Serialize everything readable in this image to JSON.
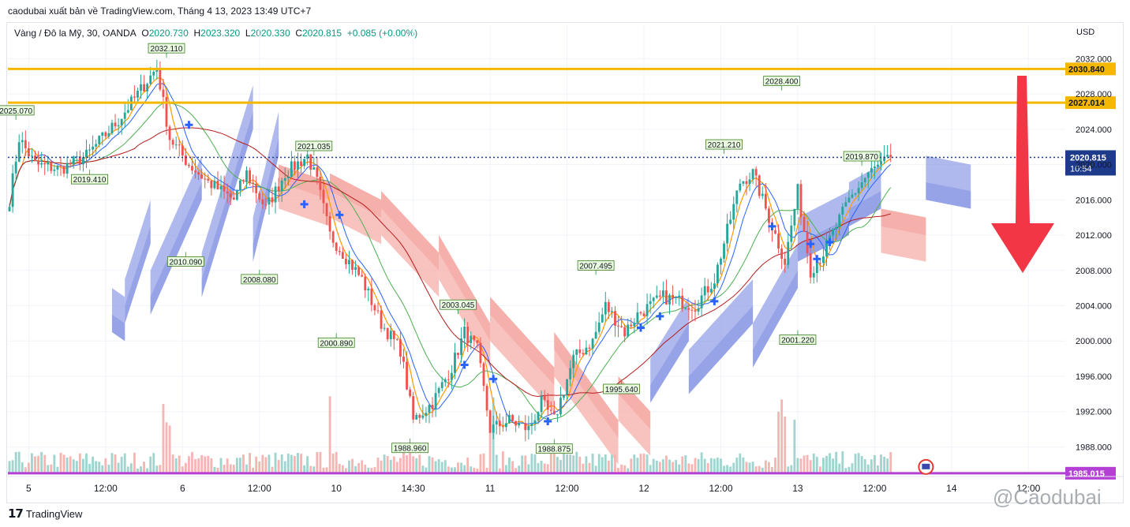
{
  "header": {
    "publish_line": "caodubai xuất bản về TradingView.com, Tháng 4 13, 2023 13:49 UTC+7",
    "symbol": "Vàng / Đô la Mỹ, 30, OANDA",
    "o_label": "O",
    "o_value": "2020.730",
    "h_label": "H",
    "h_value": "2023.320",
    "l_label": "L",
    "l_value": "2020.330",
    "c_label": "C",
    "c_value": "2020.815",
    "change": "+0.085 (+0.00%)"
  },
  "footer": {
    "logo_text": "TradingView",
    "watermark": "@Caodubai"
  },
  "colors": {
    "up": "#26a69a",
    "down": "#ef5350",
    "resistance": "#f5b800",
    "support": "#b43fd4",
    "price_line": "#1e3a8a",
    "cloud_bull": "#8e9be6",
    "cloud_bear": "#f5a9a4",
    "arrow": "#f23645",
    "signal": "#2962ff"
  },
  "chart_data": {
    "type": "candlestick",
    "currency_label": "USD",
    "ylim": [
      1985,
      2034
    ],
    "y_ticks": [
      1988,
      1992,
      1996,
      2000,
      2004,
      2008,
      2012,
      2016,
      2020,
      2024,
      2028,
      2032
    ],
    "y_tick_labels": [
      "1988.000",
      "1992.000",
      "1996.000",
      "2000.000",
      "2004.000",
      "2008.000",
      "2012.000",
      "2016.000",
      "2020.000",
      "2024.000",
      "2028.000",
      "2032.000"
    ],
    "x_ticks": [
      {
        "label": "5",
        "bar": 6
      },
      {
        "label": "12:00",
        "bar": 30
      },
      {
        "label": "6",
        "bar": 54
      },
      {
        "label": "12:00",
        "bar": 78
      },
      {
        "label": "10",
        "bar": 102
      },
      {
        "label": "14:30",
        "bar": 126
      },
      {
        "label": "11",
        "bar": 150
      },
      {
        "label": "12:00",
        "bar": 174
      },
      {
        "label": "12",
        "bar": 198
      },
      {
        "label": "12:00",
        "bar": 222
      },
      {
        "label": "13",
        "bar": 246
      },
      {
        "label": "12:00",
        "bar": 270
      },
      {
        "label": "14",
        "bar": 294
      },
      {
        "label": "12:00",
        "bar": 318
      }
    ],
    "last_bar": 275,
    "total_bars": 330,
    "keypoints": [
      [
        0,
        2016
      ],
      [
        3,
        2023
      ],
      [
        8,
        2020
      ],
      [
        16,
        2019.5
      ],
      [
        24,
        2021
      ],
      [
        34,
        2025
      ],
      [
        46,
        2031
      ],
      [
        50,
        2023
      ],
      [
        56,
        2020
      ],
      [
        62,
        2018
      ],
      [
        70,
        2016
      ],
      [
        74,
        2019
      ],
      [
        80,
        2015
      ],
      [
        86,
        2019
      ],
      [
        93,
        2021
      ],
      [
        96,
        2018
      ],
      [
        100,
        2012
      ],
      [
        104,
        2010
      ],
      [
        110,
        2007
      ],
      [
        116,
        2002
      ],
      [
        122,
        1999
      ],
      [
        126,
        1991
      ],
      [
        132,
        1993
      ],
      [
        138,
        1997
      ],
      [
        142,
        2001
      ],
      [
        146,
        1999
      ],
      [
        150,
        1990
      ],
      [
        156,
        1991
      ],
      [
        162,
        1990
      ],
      [
        166,
        1993
      ],
      [
        170,
        1991
      ],
      [
        176,
        1998
      ],
      [
        182,
        2000
      ],
      [
        186,
        2004
      ],
      [
        192,
        2001
      ],
      [
        196,
        2003
      ],
      [
        204,
        2005
      ],
      [
        214,
        2004
      ],
      [
        220,
        2007
      ],
      [
        228,
        2018
      ],
      [
        232,
        2019
      ],
      [
        238,
        2013
      ],
      [
        242,
        2009
      ],
      [
        246,
        2017
      ],
      [
        250,
        2008
      ],
      [
        254,
        2010
      ],
      [
        262,
        2016
      ],
      [
        268,
        2019
      ],
      [
        275,
        2020.8
      ]
    ],
    "price_labels": [
      {
        "bar": 49,
        "value": 2032.11,
        "label": "2032.110",
        "pos": "above"
      },
      {
        "bar": 2,
        "value": 2025.07,
        "label": "2025.070",
        "pos": "above"
      },
      {
        "bar": 25,
        "value": 2019.41,
        "label": "2019.410",
        "pos": "below"
      },
      {
        "bar": 55,
        "value": 2010.09,
        "label": "2010.090",
        "pos": "below"
      },
      {
        "bar": 78,
        "value": 2008.08,
        "label": "2008.080",
        "pos": "below"
      },
      {
        "bar": 95,
        "value": 2021.035,
        "label": "2021.035",
        "pos": "above"
      },
      {
        "bar": 102,
        "value": 2000.89,
        "label": "2000.890",
        "pos": "below"
      },
      {
        "bar": 140,
        "value": 2003.045,
        "label": "2003.045",
        "pos": "above"
      },
      {
        "bar": 125,
        "value": 1988.96,
        "label": "1988.960",
        "pos": "below"
      },
      {
        "bar": 170,
        "value": 1988.875,
        "label": "1988.875",
        "pos": "below"
      },
      {
        "bar": 183,
        "value": 2007.495,
        "label": "2007.495",
        "pos": "above"
      },
      {
        "bar": 191,
        "value": 1995.64,
        "label": "1995.640",
        "pos": "below"
      },
      {
        "bar": 223,
        "value": 2021.21,
        "label": "2021.210",
        "pos": "above"
      },
      {
        "bar": 241,
        "value": 2028.4,
        "label": "2028.400",
        "pos": "above"
      },
      {
        "bar": 246,
        "value": 2001.22,
        "label": "2001.220",
        "pos": "below"
      },
      {
        "bar": 266,
        "value": 2019.87,
        "label": "2019.870",
        "pos": "above"
      }
    ],
    "horizontal_levels": [
      {
        "value": 2030.84,
        "label": "2030.840",
        "role": "resistance"
      },
      {
        "value": 2027.014,
        "label": "2027.014",
        "role": "resistance"
      },
      {
        "value": 1985.015,
        "label": "1985.015",
        "role": "support"
      }
    ],
    "current_price": {
      "value": 2020.815,
      "label": "2020.815",
      "countdown": "10:54"
    },
    "signals": [
      {
        "bar": 56,
        "value": 2024.5
      },
      {
        "bar": 92,
        "value": 2015.5
      },
      {
        "bar": 103,
        "value": 2014.3
      },
      {
        "bar": 142,
        "value": 1997.3
      },
      {
        "bar": 151,
        "value": 1995.7
      },
      {
        "bar": 168,
        "value": 1990.9
      },
      {
        "bar": 197,
        "value": 2001.5
      },
      {
        "bar": 203,
        "value": 2002.8
      },
      {
        "bar": 220,
        "value": 2004.5
      },
      {
        "bar": 238,
        "value": 2013
      },
      {
        "bar": 250,
        "value": 2011
      },
      {
        "bar": 252,
        "value": 2009.3
      },
      {
        "bar": 256,
        "value": 2011.2
      }
    ],
    "cloud": [
      {
        "from": 32,
        "to": 36,
        "a": 2001,
        "b": 2000,
        "type": "bull"
      },
      {
        "from": 36,
        "to": 44,
        "a": 2002,
        "b": 2011,
        "type": "bull"
      },
      {
        "from": 44,
        "to": 60,
        "a": 2003,
        "b": 2016,
        "type": "bull"
      },
      {
        "from": 60,
        "to": 76,
        "a": 2005,
        "b": 2024,
        "type": "bull"
      },
      {
        "from": 76,
        "to": 84,
        "a": 2009,
        "b": 2021,
        "type": "bull"
      },
      {
        "from": 84,
        "to": 100,
        "a": 2020,
        "b": 2018,
        "type": "bear"
      },
      {
        "from": 100,
        "to": 116,
        "a": 2019,
        "b": 2016,
        "type": "bear"
      },
      {
        "from": 116,
        "to": 134,
        "a": 2017,
        "b": 2010,
        "type": "bear"
      },
      {
        "from": 134,
        "to": 150,
        "a": 2012,
        "b": 2002,
        "type": "bear"
      },
      {
        "from": 150,
        "to": 170,
        "a": 2005,
        "b": 1997,
        "type": "bear"
      },
      {
        "from": 170,
        "to": 190,
        "a": 2001,
        "b": 1991,
        "type": "bear"
      },
      {
        "from": 190,
        "to": 200,
        "a": 1996,
        "b": 1992,
        "type": "bear"
      },
      {
        "from": 200,
        "to": 212,
        "a": 1993,
        "b": 2000,
        "type": "bull"
      },
      {
        "from": 212,
        "to": 232,
        "a": 1994,
        "b": 2002,
        "type": "bull"
      },
      {
        "from": 232,
        "to": 246,
        "a": 1997,
        "b": 2006,
        "type": "bull"
      },
      {
        "from": 246,
        "to": 262,
        "a": 2009,
        "b": 2012,
        "type": "bull"
      },
      {
        "from": 262,
        "to": 272,
        "a": 2013,
        "b": 2015,
        "type": "bull"
      },
      {
        "from": 272,
        "to": 286,
        "a": 2015,
        "b": 2014,
        "type": "bear"
      },
      {
        "from": 286,
        "to": 300,
        "a": 2016,
        "b": 2015,
        "type": "bull"
      }
    ]
  }
}
